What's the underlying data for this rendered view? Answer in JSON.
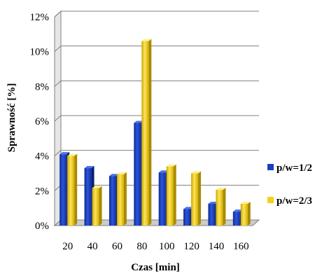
{
  "chart_data": {
    "type": "bar",
    "title": "",
    "xlabel": "Czas [min]",
    "ylabel": "Sprawność [%]",
    "ylim": [
      0,
      12
    ],
    "yticks": [
      "0%",
      "2%",
      "4%",
      "6%",
      "8%",
      "10%",
      "12%"
    ],
    "ytick_values": [
      0,
      2,
      4,
      6,
      8,
      10,
      12
    ],
    "categories": [
      "20",
      "40",
      "60",
      "80",
      "100",
      "120",
      "140",
      "160"
    ],
    "grid": "horizontal",
    "legend_position": "right",
    "style": "3d-column",
    "series": [
      {
        "name": "p/w=1/2",
        "color": "#1a3fbf",
        "values": [
          4.1,
          3.3,
          2.85,
          5.9,
          3.05,
          0.95,
          1.25,
          0.8
        ]
      },
      {
        "name": "p/w=2/3",
        "color": "#f2d21a",
        "values": [
          4.0,
          2.15,
          2.95,
          10.6,
          3.4,
          3.0,
          2.05,
          1.25
        ]
      }
    ]
  }
}
